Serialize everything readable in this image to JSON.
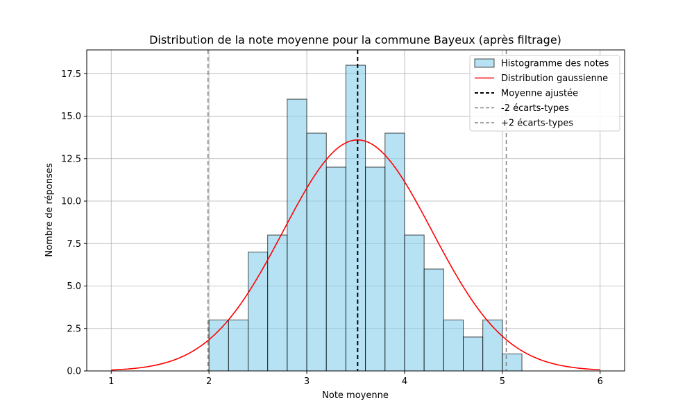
{
  "chart_data": {
    "type": "bar",
    "title": "Distribution de la note moyenne pour la commune Bayeux (après filtrage)",
    "xlabel": "Note moyenne",
    "ylabel": "Nombre de réponses",
    "xlim": [
      0.75,
      6.25
    ],
    "ylim": [
      0,
      18.9
    ],
    "xticks": [
      1,
      2,
      3,
      4,
      5,
      6
    ],
    "xtick_labels": [
      "1",
      "2",
      "3",
      "4",
      "5",
      "6"
    ],
    "yticks": [
      0,
      2.5,
      5,
      7.5,
      10,
      12.5,
      15,
      17.5
    ],
    "ytick_labels": [
      "0.0",
      "2.5",
      "5.0",
      "7.5",
      "10.0",
      "12.5",
      "15.0",
      "17.5"
    ],
    "grid": true,
    "legend_position": "top-right",
    "histogram": {
      "name": "Histogramme des notes",
      "color": "#87CEEB",
      "edge_color": "#000000",
      "bin_edges": [
        2.0,
        2.2,
        2.4,
        2.6,
        2.8,
        3.0,
        3.2,
        3.4,
        3.6,
        3.8,
        4.0,
        4.2,
        4.4,
        4.6,
        4.8,
        5.0,
        5.2
      ],
      "counts": [
        3,
        3,
        7,
        8,
        16,
        14,
        12,
        18,
        12,
        14,
        8,
        6,
        3,
        2,
        3,
        1
      ]
    },
    "gaussian": {
      "name": "Distribution gaussienne",
      "color": "#ff0000",
      "mean": 3.52,
      "std": 0.76,
      "peak": 13.6,
      "x_range": [
        1,
        6
      ]
    },
    "mean_line": {
      "name": "Moyenne ajustée",
      "x": 3.52,
      "color": "#000000"
    },
    "minus2sd_line": {
      "name": "-2 écarts-types",
      "x": 1.99,
      "color": "#808080"
    },
    "plus2sd_line": {
      "name": "+2 écarts-types",
      "x": 5.04,
      "color": "#808080"
    }
  }
}
